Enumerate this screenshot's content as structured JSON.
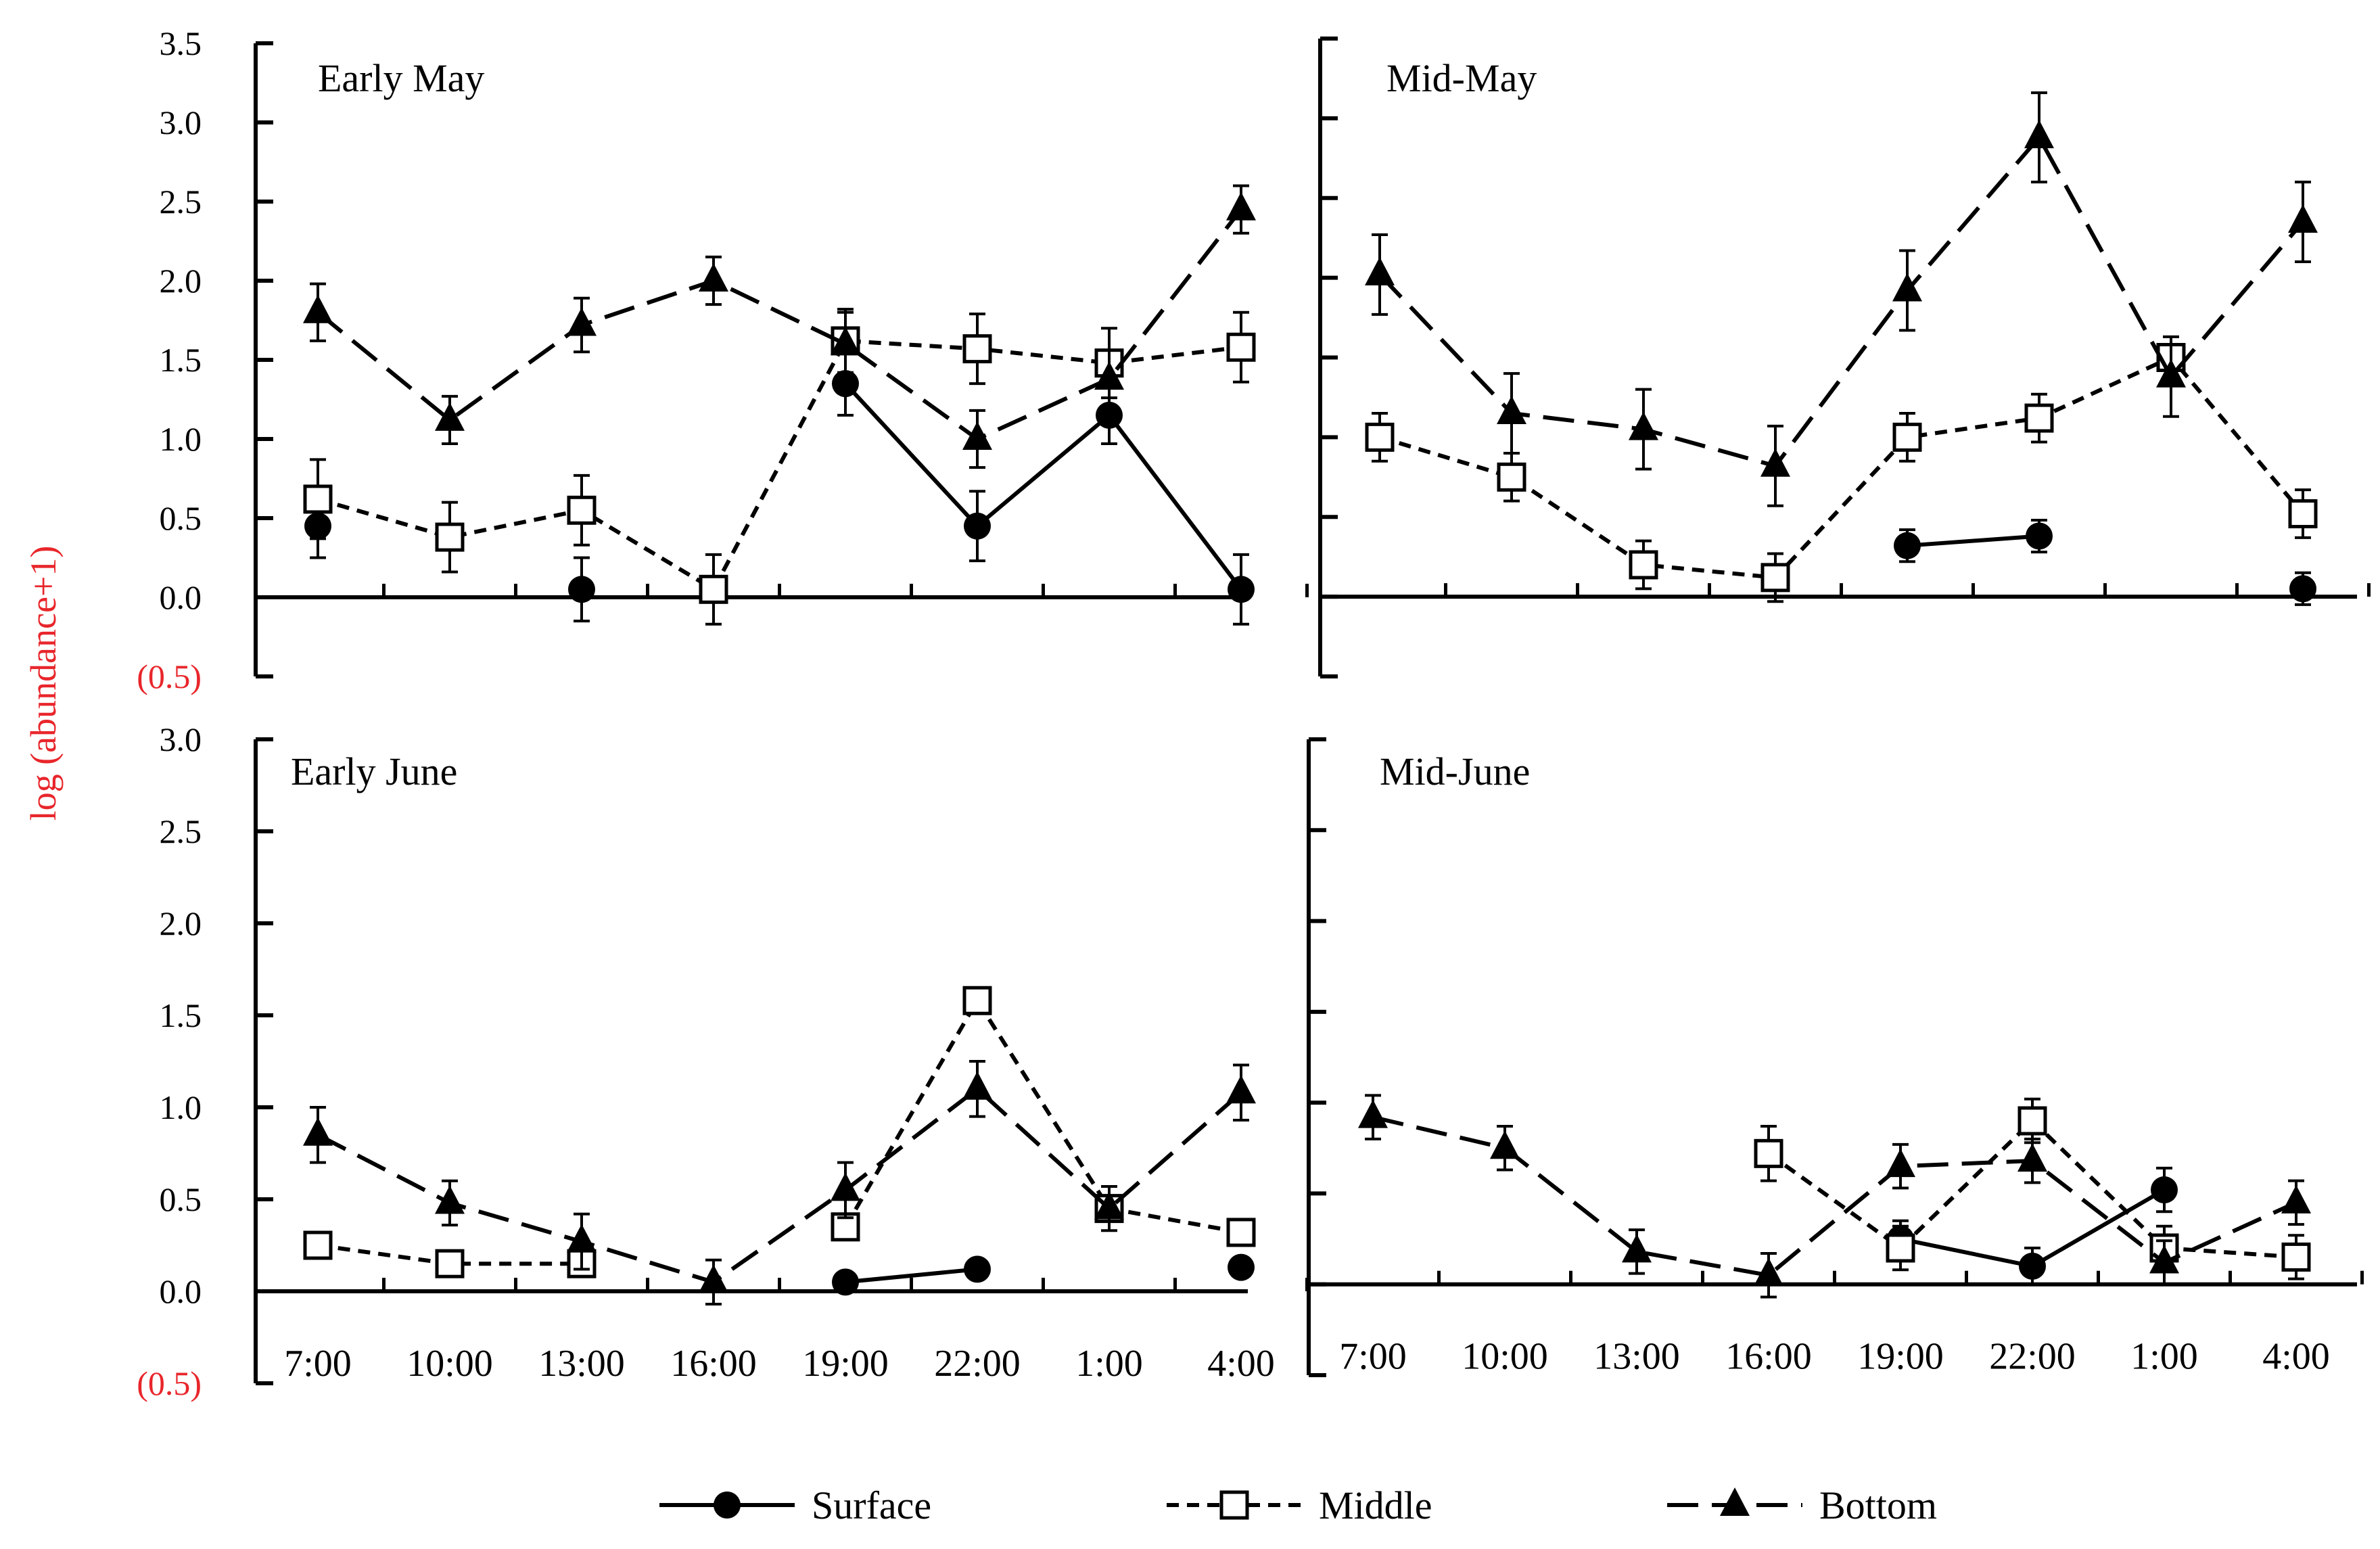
{
  "chart_data": {
    "type": "line",
    "ylabel": "log (abundance+1)",
    "ylabel_color": "#e8262b",
    "x": [
      "7:00",
      "10:00",
      "13:00",
      "16:00",
      "19:00",
      "22:00",
      "1:00",
      "4:00"
    ],
    "legend": [
      {
        "name": "Surface",
        "dash": "solid",
        "marker": "filled-circle"
      },
      {
        "name": "Middle",
        "dash": "short-dash",
        "marker": "open-square"
      },
      {
        "name": "Bottom",
        "dash": "long-dash",
        "marker": "filled-triangle"
      }
    ],
    "legend_placement": "bottom-center",
    "panels": [
      {
        "title": "Early May",
        "ylim": [
          -0.5,
          3.5
        ],
        "yticks": [
          "(0.5)",
          "0.0",
          "0.5",
          "1.0",
          "1.5",
          "2.0",
          "2.5",
          "3.0",
          "3.5"
        ],
        "series": [
          {
            "name": "Surface",
            "values": [
              0.45,
              null,
              0.05,
              null,
              1.35,
              0.45,
              1.15,
              0.05
            ],
            "errors": [
              0.2,
              null,
              0.2,
              null,
              0.2,
              0.22,
              0.18,
              0.22
            ]
          },
          {
            "name": "Middle",
            "values": [
              0.62,
              0.38,
              0.55,
              0.05,
              1.62,
              1.57,
              1.48,
              1.58
            ],
            "errors": [
              0.25,
              0.22,
              0.22,
              0.22,
              0.2,
              0.22,
              0.22,
              0.22
            ]
          },
          {
            "name": "Bottom",
            "values": [
              1.8,
              1.12,
              1.72,
              2.0,
              1.6,
              1.0,
              1.38,
              2.45
            ],
            "errors": [
              0.18,
              0.15,
              0.17,
              0.15,
              0.2,
              0.18,
              0.18,
              0.15
            ]
          }
        ]
      },
      {
        "title": "Mid-May",
        "ylim": [
          -0.5,
          3.5
        ],
        "yticks": [],
        "series": [
          {
            "name": "Surface",
            "values": [
              null,
              null,
              null,
              null,
              0.32,
              0.38,
              null,
              0.05
            ],
            "errors": [
              null,
              null,
              null,
              null,
              0.1,
              0.1,
              null,
              0.1
            ]
          },
          {
            "name": "Middle",
            "values": [
              1.0,
              0.75,
              0.2,
              0.12,
              1.0,
              1.12,
              1.5,
              0.52
            ],
            "errors": [
              0.15,
              0.15,
              0.15,
              0.15,
              0.15,
              0.15,
              0.08,
              0.15
            ]
          },
          {
            "name": "Bottom",
            "values": [
              2.02,
              1.15,
              1.05,
              0.82,
              1.92,
              2.88,
              1.38,
              2.35
            ],
            "errors": [
              0.25,
              0.25,
              0.25,
              0.25,
              0.25,
              0.28,
              0.25,
              0.25
            ]
          }
        ]
      },
      {
        "title": "Early June",
        "ylim": [
          -0.5,
          3.0
        ],
        "yticks": [
          "(0.5)",
          "0.0",
          "0.5",
          "1.0",
          "1.5",
          "2.0",
          "2.5",
          "3.0"
        ],
        "series": [
          {
            "name": "Surface",
            "values": [
              null,
              null,
              null,
              null,
              0.05,
              0.12,
              null,
              0.13
            ],
            "errors": [
              null,
              null,
              null,
              null,
              null,
              null,
              null,
              null
            ]
          },
          {
            "name": "Middle",
            "values": [
              0.25,
              0.15,
              0.15,
              null,
              0.35,
              1.58,
              0.45,
              0.32
            ],
            "errors": [
              null,
              null,
              null,
              null,
              null,
              null,
              null,
              null
            ]
          },
          {
            "name": "Bottom",
            "values": [
              0.85,
              0.48,
              0.27,
              0.05,
              0.55,
              1.1,
              0.45,
              1.08
            ],
            "errors": [
              0.15,
              0.12,
              0.15,
              0.12,
              0.15,
              0.15,
              0.12,
              0.15
            ]
          }
        ]
      },
      {
        "title": "Mid-June",
        "ylim": [
          -0.5,
          3.0
        ],
        "yticks": [],
        "series": [
          {
            "name": "Surface",
            "values": [
              null,
              null,
              null,
              null,
              0.25,
              0.1,
              0.52,
              null
            ],
            "errors": [
              null,
              null,
              null,
              null,
              0.1,
              0.1,
              0.12,
              null
            ]
          },
          {
            "name": "Middle",
            "values": [
              null,
              null,
              null,
              0.72,
              0.2,
              0.9,
              0.2,
              0.15
            ],
            "errors": [
              null,
              null,
              null,
              0.15,
              0.12,
              0.12,
              0.12,
              0.12
            ]
          },
          {
            "name": "Bottom",
            "values": [
              0.92,
              0.75,
              0.18,
              0.05,
              0.65,
              0.68,
              0.12,
              0.45
            ],
            "errors": [
              0.12,
              0.12,
              0.12,
              0.12,
              0.12,
              0.12,
              0.12,
              0.12
            ]
          }
        ]
      }
    ]
  }
}
